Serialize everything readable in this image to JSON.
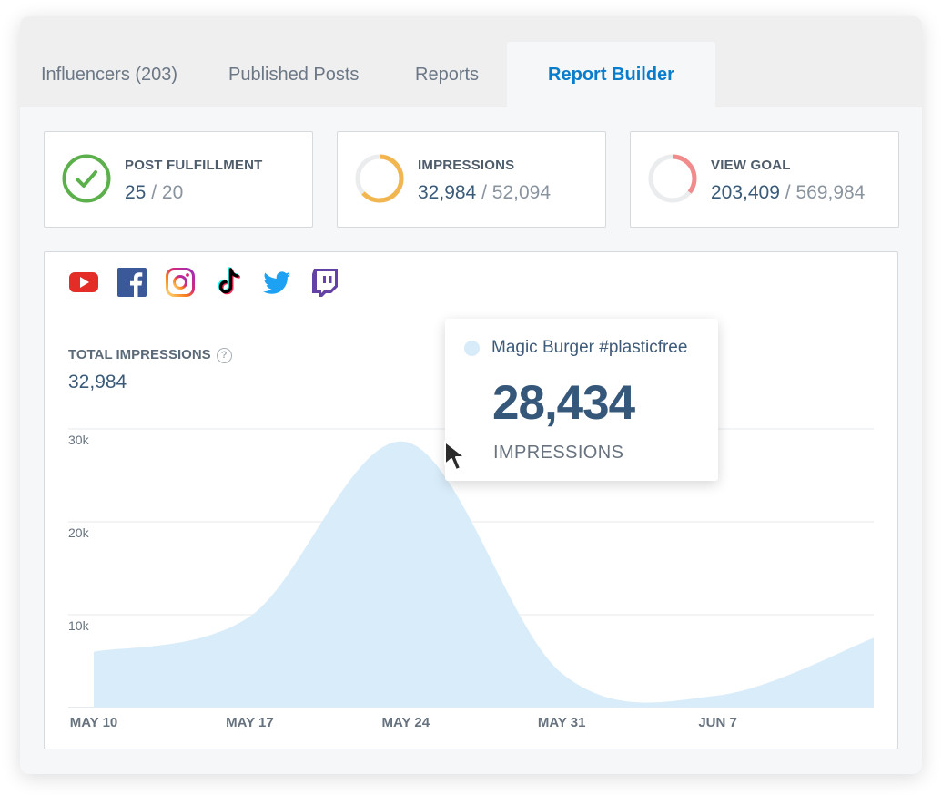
{
  "tabs": [
    {
      "label": "Influencers (203)"
    },
    {
      "label": "Published Posts"
    },
    {
      "label": "Reports"
    },
    {
      "label": "Report Builder",
      "active": true
    }
  ],
  "stats": {
    "post_fulfillment": {
      "title": "POST FULFILLMENT",
      "value": "25",
      "separator": "/",
      "total": "20",
      "status_color": "#5cb04c"
    },
    "impressions": {
      "title": "IMPRESSIONS",
      "value": "32,984",
      "separator": "/",
      "total": "52,094",
      "progress": 0.633,
      "color": "#f2b650"
    },
    "view_goal": {
      "title": "VIEW GOAL",
      "value": "203,409",
      "separator": "/",
      "total": "569,984",
      "progress": 0.357,
      "color": "#f28b8b"
    }
  },
  "social_icons": [
    {
      "icon": "youtube-icon",
      "color": "#e52d27"
    },
    {
      "icon": "facebook-icon",
      "color": "#3b5998"
    },
    {
      "icon": "instagram-icon",
      "color": "#d62976"
    },
    {
      "icon": "tiktok-icon",
      "color": "#000000"
    },
    {
      "icon": "twitter-icon",
      "color": "#1da1f2"
    },
    {
      "icon": "twitch-icon",
      "color": "#6441a5"
    }
  ],
  "metric": {
    "label": "TOTAL IMPRESSIONS",
    "help": "?",
    "value": "32,984"
  },
  "tooltip": {
    "series": "Magic Burger #plasticfree",
    "value": "28,434",
    "unit": "IMPRESSIONS"
  },
  "chart_data": {
    "type": "area",
    "title": "",
    "xlabel": "",
    "ylabel": "",
    "grid": true,
    "ylim": [
      0,
      30000
    ],
    "y_ticks": [
      "10k",
      "20k",
      "30k"
    ],
    "y_tick_values": [
      10000,
      20000,
      30000
    ],
    "x_tick_labels": [
      "MAY 10",
      "MAY 17",
      "MAY 24",
      "MAY 31",
      "JUN 7"
    ],
    "x": [
      "May 10",
      "May 17",
      "May 24",
      "May 31",
      "Jun 7",
      "Jun 12"
    ],
    "series": [
      {
        "values": [
          6000,
          9800,
          28600,
          3700,
          1300,
          7500
        ],
        "color": "#d9ecf9"
      }
    ]
  }
}
